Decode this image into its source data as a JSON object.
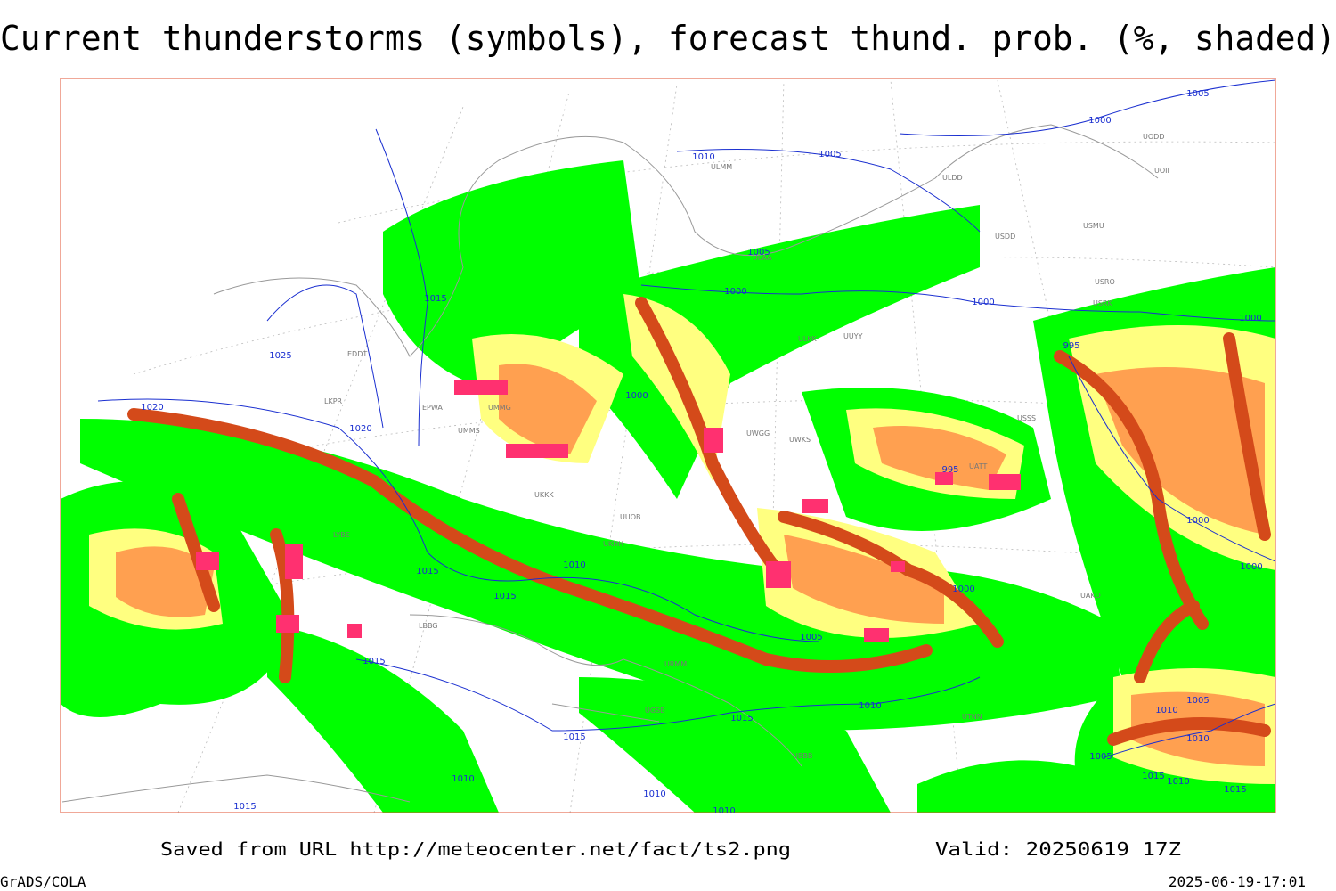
{
  "header": {
    "title": "Current thunderstorms (symbols), forecast thund. prob. (%, shaded)"
  },
  "footer": {
    "source": "Saved from URL http://meteocenter.net/fact/ts2.png",
    "valid": "Valid: 20250619 17Z",
    "software": "GrADS/COLA",
    "timestamp": "2025-06-19-17:01"
  },
  "isobar_labels": [
    "1005",
    "1000",
    "1010",
    "1005",
    "1005",
    "1000",
    "1000",
    "1000",
    "995",
    "1015",
    "1025",
    "1020",
    "1020",
    "1000",
    "995",
    "1000",
    "1000",
    "1000",
    "1015",
    "1010",
    "1015",
    "1005",
    "1015",
    "1010",
    "1015",
    "1015",
    "1005",
    "1010",
    "1010",
    "1005",
    "1010",
    "1010",
    "1010",
    "1015",
    "1015",
    "1010",
    "1015"
  ],
  "stations": [
    "ULMM",
    "ULDD",
    "UOII",
    "UODD",
    "USMU",
    "USDD",
    "ULAA",
    "USRO",
    "USRK",
    "UUYY",
    "ULKK",
    "EDDT",
    "EPWA",
    "LKPR",
    "UMMG",
    "UMMS",
    "UKKK",
    "UUOB",
    "UKHH",
    "LYBE",
    "LBBG",
    "UGSB",
    "URMM",
    "UBBB",
    "UTNN",
    "UAKD",
    "USSS",
    "UWGG",
    "UWKS",
    "UATT"
  ]
}
